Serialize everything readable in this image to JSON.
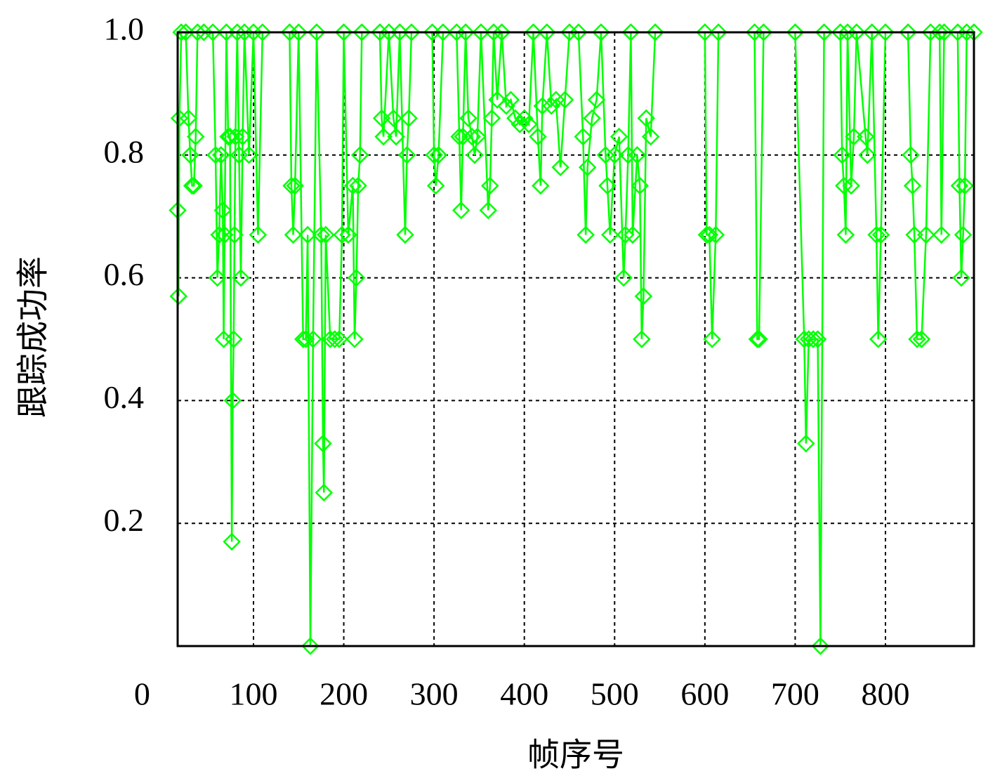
{
  "chart_data": {
    "type": "line",
    "x_label": "帧序号",
    "y_label": "跟踪成功率",
    "xlim": [
      16,
      898
    ],
    "ylim": [
      0,
      1
    ],
    "xticks": [
      0,
      100,
      200,
      300,
      400,
      500,
      600,
      700,
      800
    ],
    "yticks": [
      0.2,
      0.4,
      0.6,
      0.8,
      {
        "value": 1,
        "label": "1.0"
      }
    ],
    "grid": true,
    "series": [
      {
        "color": "#00ff00",
        "x": [
          16,
          17,
          18,
          20,
          25,
          28,
          30,
          32,
          34,
          36,
          38,
          45,
          55,
          58,
          60,
          62,
          64,
          66,
          67,
          68,
          70,
          72,
          74,
          76,
          77,
          78,
          79,
          80,
          82,
          84,
          86,
          88,
          90,
          95,
          100,
          105,
          110,
          140,
          142,
          144,
          146,
          150,
          155,
          158,
          160,
          163,
          166,
          170,
          175,
          177,
          178,
          180,
          185,
          190,
          195,
          198,
          200,
          205,
          210,
          212,
          214,
          216,
          218,
          220,
          240,
          242,
          244,
          250,
          255,
          258,
          262,
          268,
          270,
          272,
          275,
          298,
          300,
          302,
          305,
          310,
          325,
          328,
          330,
          332,
          335,
          338,
          342,
          345,
          348,
          352,
          360,
          362,
          364,
          366,
          370,
          375,
          380,
          385,
          390,
          395,
          400,
          405,
          410,
          415,
          418,
          420,
          425,
          430,
          435,
          440,
          445,
          450,
          460,
          465,
          468,
          470,
          475,
          480,
          485,
          490,
          492,
          495,
          500,
          505,
          510,
          512,
          515,
          518,
          520,
          525,
          528,
          530,
          532,
          535,
          540,
          545,
          600,
          602,
          605,
          608,
          612,
          615,
          655,
          658,
          660,
          665,
          700,
          710,
          712,
          715,
          720,
          725,
          728,
          732,
          750,
          752,
          754,
          756,
          758,
          762,
          765,
          768,
          778,
          780,
          785,
          790,
          792,
          795,
          800,
          825,
          828,
          830,
          832,
          835,
          840,
          845,
          850,
          860,
          862,
          865,
          880,
          882,
          884,
          886,
          888,
          890,
          898
        ],
        "values": [
          0.71,
          0.57,
          0.86,
          1,
          1,
          0.86,
          0.8,
          0.75,
          0.75,
          0.83,
          1,
          1,
          1,
          0.8,
          0.6,
          0.67,
          0.8,
          0.71,
          0.5,
          0.67,
          1,
          0.83,
          0.83,
          0.17,
          0.4,
          0.5,
          0.67,
          0.83,
          1,
          0.8,
          0.6,
          0.83,
          1,
          0.8,
          1,
          0.67,
          1,
          1,
          0.75,
          0.67,
          0.75,
          1,
          0.5,
          0.5,
          0.67,
          0,
          0.5,
          1,
          0.67,
          0.33,
          0.25,
          0.67,
          0.5,
          0.5,
          0.5,
          0.67,
          1,
          0.67,
          0.75,
          0.5,
          0.6,
          0.75,
          0.8,
          1,
          1,
          0.86,
          0.83,
          1,
          0.86,
          0.83,
          1,
          0.67,
          0.8,
          0.86,
          1,
          1,
          0.8,
          0.75,
          0.8,
          1,
          1,
          0.83,
          0.71,
          0.83,
          1,
          0.86,
          0.83,
          0.8,
          0.83,
          1,
          0.71,
          0.75,
          0.86,
          1,
          0.89,
          1,
          0.88,
          0.89,
          0.86,
          0.85,
          0.86,
          0.85,
          1,
          0.83,
          0.75,
          0.88,
          1,
          0.88,
          0.89,
          0.78,
          0.89,
          1,
          1,
          0.83,
          0.67,
          0.78,
          0.86,
          0.89,
          1,
          0.8,
          0.75,
          0.67,
          0.8,
          0.83,
          0.6,
          0.67,
          0.8,
          1,
          0.67,
          0.8,
          0.75,
          0.5,
          0.57,
          0.86,
          0.83,
          1,
          1,
          0.67,
          0.67,
          0.5,
          0.67,
          1,
          1,
          0.5,
          0.5,
          1,
          1,
          0.5,
          0.33,
          0.5,
          0.5,
          0.5,
          0,
          1,
          1,
          0.8,
          0.75,
          0.67,
          1,
          0.75,
          0.83,
          1,
          0.83,
          0.8,
          1,
          0.67,
          0.5,
          0.67,
          1,
          1,
          0.8,
          0.75,
          0.67,
          0.5,
          0.5,
          0.67,
          1,
          1,
          0.67,
          1,
          1,
          0.75,
          0.6,
          0.67,
          0.75,
          1,
          1
        ]
      }
    ]
  }
}
